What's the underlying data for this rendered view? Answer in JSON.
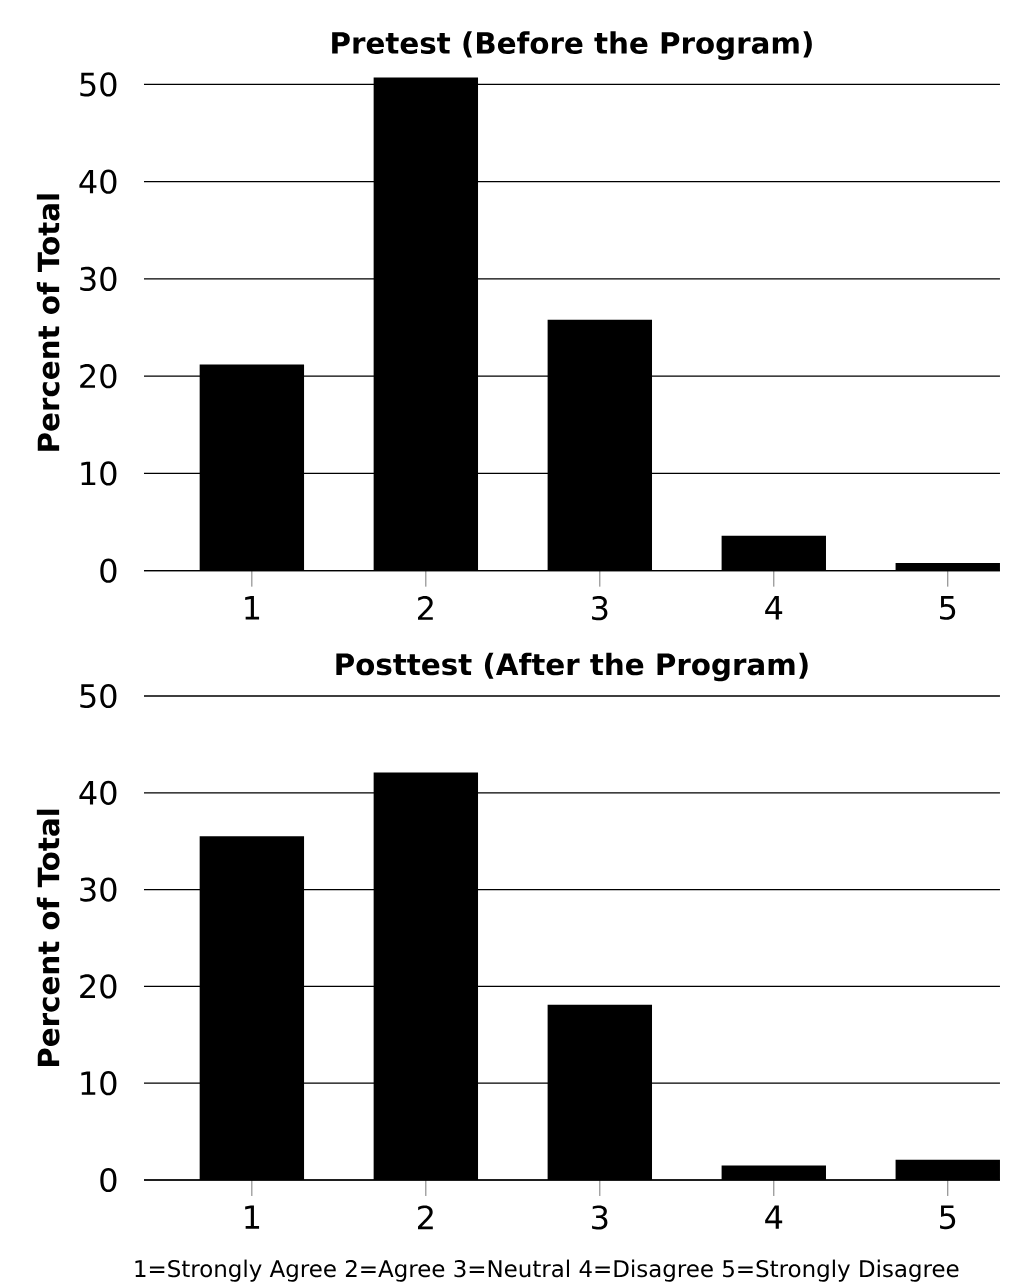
{
  "chart_data": [
    {
      "type": "bar",
      "title": "Pretest (Before the Program)",
      "ylabel": "Percent of Total",
      "categories": [
        "1",
        "2",
        "3",
        "4",
        "5"
      ],
      "values": [
        21.2,
        50.7,
        25.8,
        3.6,
        0.8
      ],
      "color": "#000000",
      "ylim": [
        0,
        51
      ],
      "yticks": [
        0,
        10,
        20,
        30,
        40,
        50
      ],
      "grid": "y"
    },
    {
      "type": "bar",
      "title": "Posttest (After the Program)",
      "ylabel": "Percent of Total",
      "categories": [
        "1",
        "2",
        "3",
        "4",
        "5"
      ],
      "values": [
        35.5,
        42.1,
        18.1,
        1.5,
        2.1
      ],
      "color": "#000000",
      "ylim": [
        0,
        50
      ],
      "yticks": [
        0,
        10,
        20,
        30,
        40,
        50
      ],
      "grid": "y",
      "annotations": [
        "1=Strongly Agree  2=Agree  3=Neutral  4=Disagree  5=Strongly Disagree"
      ]
    }
  ]
}
